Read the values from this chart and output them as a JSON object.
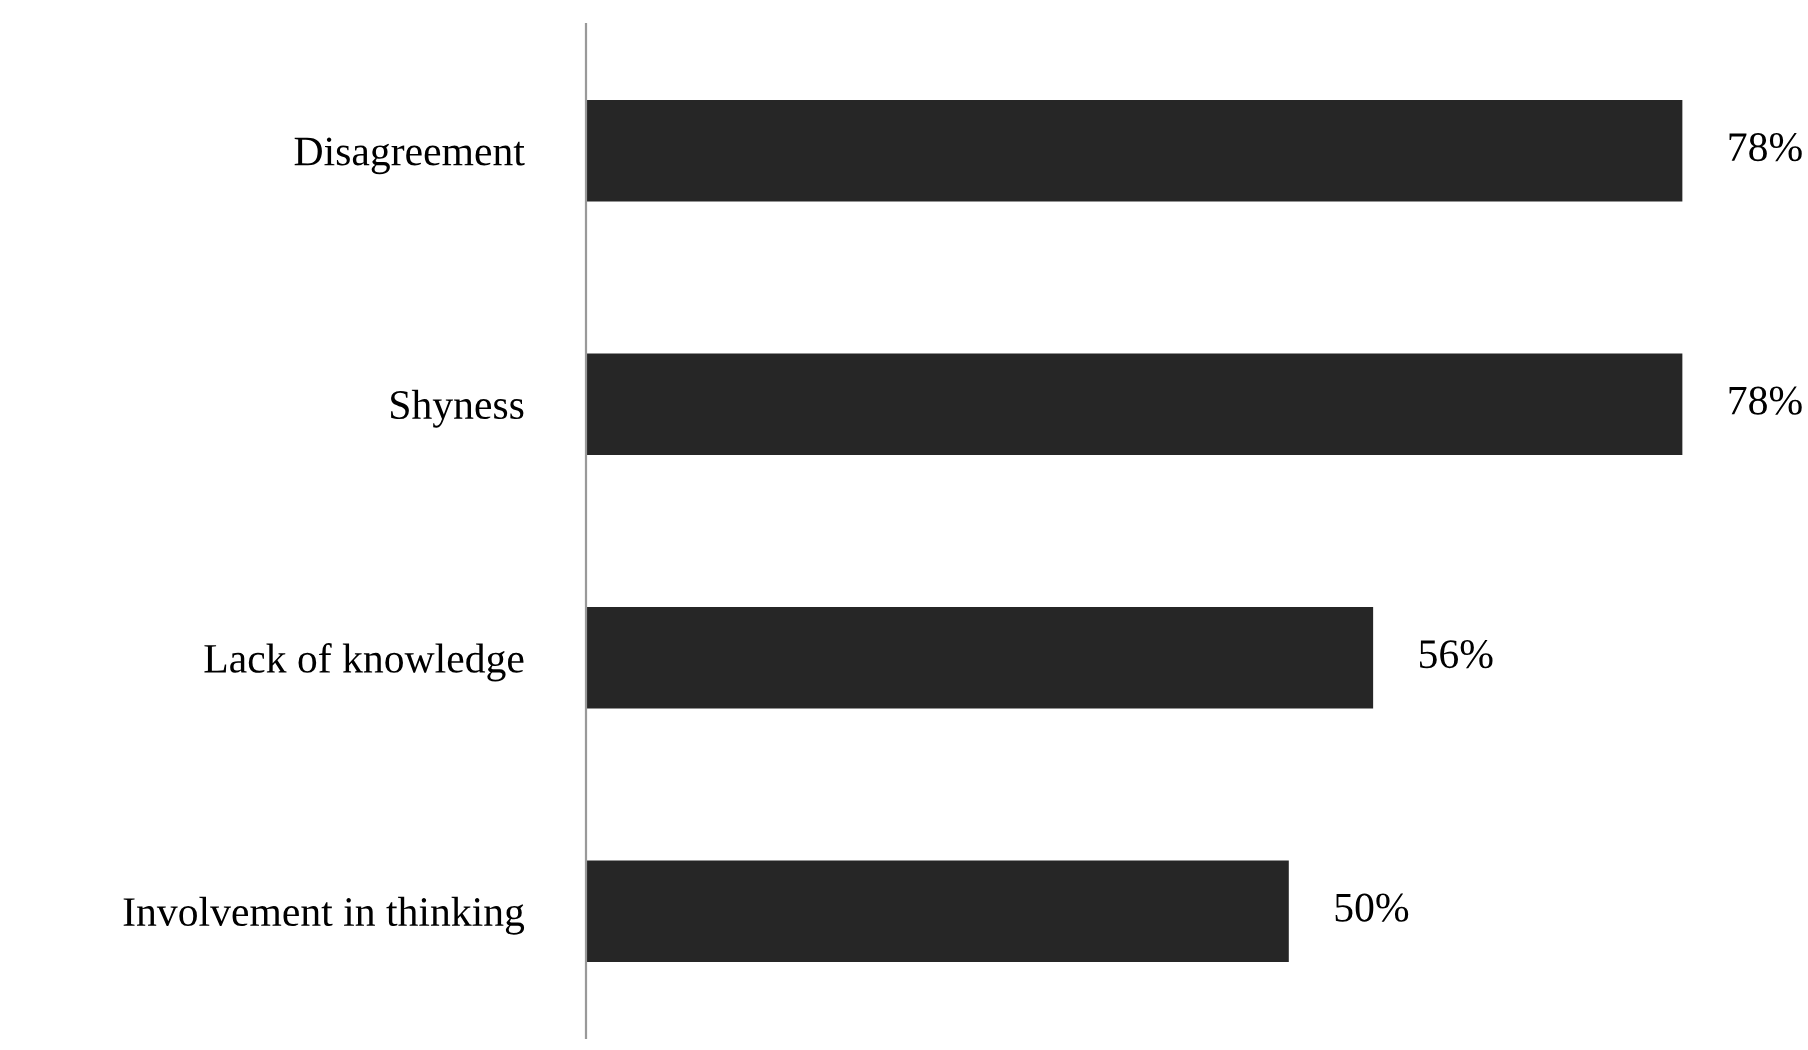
{
  "chart_data": {
    "type": "bar",
    "orientation": "horizontal",
    "categories": [
      "Disagreement",
      "Shyness",
      "Lack of knowledge",
      "Involvement in thinking"
    ],
    "values": [
      78,
      78,
      56,
      50
    ],
    "value_labels": [
      "78%",
      "78%",
      "56%",
      "50%"
    ],
    "color": "#262626",
    "grid": false,
    "legend": false
  }
}
